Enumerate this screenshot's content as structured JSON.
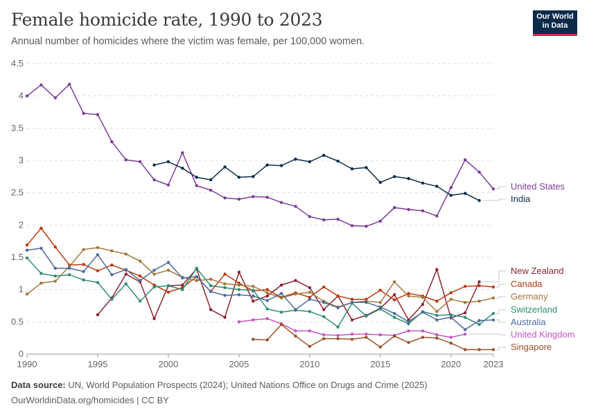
{
  "header": {
    "title": "Female homicide rate, 1990 to 2023",
    "subtitle": "Annual number of homicides where the victim was female, per 100,000 women.",
    "logo_line1": "Our World",
    "logo_line2": "in Data"
  },
  "footer": {
    "source_label": "Data source:",
    "source_text": "UN, World Population Prospects (2024); United Nations Office on Drugs and Crime (2025)",
    "link_text": "OurWorldinData.org/homicides | CC BY"
  },
  "chart_data": {
    "type": "line",
    "xlim": [
      1990,
      2023
    ],
    "ylim": [
      0,
      4.5
    ],
    "x_ticks": [
      1990,
      1995,
      2000,
      2005,
      2010,
      2015,
      2020,
      2023
    ],
    "y_ticks": [
      0,
      0.5,
      1,
      1.5,
      2,
      2.5,
      3,
      3.5,
      4,
      4.5
    ],
    "grid": "horizontal-dashed",
    "legend": "right-labels",
    "series": [
      {
        "name": "United States",
        "color": "#7a3d96",
        "points": [
          [
            1990,
            4.0
          ],
          [
            1991,
            4.17
          ],
          [
            1992,
            3.97
          ],
          [
            1993,
            4.18
          ],
          [
            1994,
            3.73
          ],
          [
            1995,
            3.71
          ],
          [
            1996,
            3.29
          ],
          [
            1997,
            3.01
          ],
          [
            1998,
            2.98
          ],
          [
            1999,
            2.7
          ],
          [
            2000,
            2.62
          ],
          [
            2001,
            3.12
          ],
          [
            2002,
            2.61
          ],
          [
            2003,
            2.54
          ],
          [
            2004,
            2.42
          ],
          [
            2005,
            2.4
          ],
          [
            2006,
            2.44
          ],
          [
            2007,
            2.43
          ],
          [
            2008,
            2.35
          ],
          [
            2009,
            2.29
          ],
          [
            2010,
            2.13
          ],
          [
            2011,
            2.08
          ],
          [
            2012,
            2.09
          ],
          [
            2013,
            1.99
          ],
          [
            2014,
            1.98
          ],
          [
            2015,
            2.06
          ],
          [
            2016,
            2.27
          ],
          [
            2017,
            2.24
          ],
          [
            2018,
            2.22
          ],
          [
            2019,
            2.14
          ],
          [
            2020,
            2.58
          ],
          [
            2021,
            3.01
          ],
          [
            2022,
            2.82
          ],
          [
            2023,
            2.56
          ]
        ]
      },
      {
        "name": "India",
        "color": "#0c2b4b",
        "points": [
          [
            1999,
            2.93
          ],
          [
            2000,
            2.98
          ],
          [
            2001,
            2.88
          ],
          [
            2002,
            2.74
          ],
          [
            2003,
            2.7
          ],
          [
            2004,
            2.9
          ],
          [
            2005,
            2.74
          ],
          [
            2006,
            2.75
          ],
          [
            2007,
            2.93
          ],
          [
            2008,
            2.92
          ],
          [
            2009,
            3.02
          ],
          [
            2010,
            2.98
          ],
          [
            2011,
            3.08
          ],
          [
            2012,
            2.99
          ],
          [
            2013,
            2.87
          ],
          [
            2014,
            2.89
          ],
          [
            2015,
            2.66
          ],
          [
            2016,
            2.75
          ],
          [
            2017,
            2.72
          ],
          [
            2018,
            2.65
          ],
          [
            2019,
            2.6
          ],
          [
            2020,
            2.46
          ],
          [
            2021,
            2.49
          ],
          [
            2022,
            2.38
          ]
        ]
      },
      {
        "name": "New Zealand",
        "color": "#8c2331",
        "points": [
          [
            1995,
            0.61
          ],
          [
            1996,
            0.87
          ],
          [
            1997,
            1.24
          ],
          [
            1998,
            1.12
          ],
          [
            1999,
            0.55
          ],
          [
            2000,
            1.06
          ],
          [
            2001,
            1.07
          ],
          [
            2002,
            1.32
          ],
          [
            2003,
            0.69
          ],
          [
            2004,
            0.57
          ],
          [
            2005,
            1.27
          ],
          [
            2006,
            0.82
          ],
          [
            2007,
            0.9
          ],
          [
            2008,
            1.07
          ],
          [
            2009,
            1.14
          ],
          [
            2010,
            1.03
          ],
          [
            2011,
            0.69
          ],
          [
            2012,
            0.9
          ],
          [
            2013,
            0.53
          ],
          [
            2014,
            0.6
          ],
          [
            2015,
            0.71
          ],
          [
            2016,
            0.92
          ],
          [
            2017,
            0.53
          ],
          [
            2018,
            0.77
          ],
          [
            2019,
            1.31
          ],
          [
            2020,
            0.56
          ],
          [
            2021,
            0.64
          ],
          [
            2022,
            1.12
          ]
        ]
      },
      {
        "name": "Canada",
        "color": "#b83a10",
        "points": [
          [
            1990,
            1.69
          ],
          [
            1991,
            1.95
          ],
          [
            1992,
            1.66
          ],
          [
            1993,
            1.38
          ],
          [
            1994,
            1.39
          ],
          [
            1995,
            1.29
          ],
          [
            1996,
            1.38
          ],
          [
            1997,
            1.3
          ],
          [
            1998,
            1.21
          ],
          [
            1999,
            1.07
          ],
          [
            2000,
            0.96
          ],
          [
            2001,
            1.03
          ],
          [
            2002,
            1.2
          ],
          [
            2003,
            0.97
          ],
          [
            2004,
            1.24
          ],
          [
            2005,
            1.1
          ],
          [
            2006,
            0.98
          ],
          [
            2007,
            1.0
          ],
          [
            2008,
            0.88
          ],
          [
            2009,
            0.95
          ],
          [
            2010,
            0.88
          ],
          [
            2011,
            1.04
          ],
          [
            2012,
            0.9
          ],
          [
            2013,
            0.85
          ],
          [
            2014,
            0.85
          ],
          [
            2015,
            0.99
          ],
          [
            2016,
            0.84
          ],
          [
            2017,
            0.94
          ],
          [
            2018,
            0.9
          ],
          [
            2019,
            0.82
          ],
          [
            2020,
            0.95
          ],
          [
            2021,
            1.05
          ],
          [
            2022,
            1.06
          ],
          [
            2023,
            1.04
          ]
        ]
      },
      {
        "name": "Germany",
        "color": "#a2763a",
        "points": [
          [
            1990,
            0.93
          ],
          [
            1991,
            1.1
          ],
          [
            1992,
            1.13
          ],
          [
            1993,
            1.36
          ],
          [
            1994,
            1.62
          ],
          [
            1995,
            1.65
          ],
          [
            1996,
            1.6
          ],
          [
            1997,
            1.55
          ],
          [
            1998,
            1.44
          ],
          [
            1999,
            1.24
          ],
          [
            2000,
            1.3
          ],
          [
            2001,
            1.19
          ],
          [
            2002,
            1.14
          ],
          [
            2003,
            1.16
          ],
          [
            2004,
            1.09
          ],
          [
            2005,
            1.07
          ],
          [
            2006,
            1.05
          ],
          [
            2007,
            0.95
          ],
          [
            2008,
            0.87
          ],
          [
            2009,
            0.93
          ],
          [
            2010,
            0.96
          ],
          [
            2011,
            0.82
          ],
          [
            2012,
            0.73
          ],
          [
            2013,
            0.8
          ],
          [
            2014,
            0.82
          ],
          [
            2015,
            0.8
          ],
          [
            2016,
            1.12
          ],
          [
            2017,
            0.9
          ],
          [
            2018,
            0.88
          ],
          [
            2019,
            0.66
          ],
          [
            2020,
            0.85
          ],
          [
            2021,
            0.8
          ],
          [
            2022,
            0.82
          ],
          [
            2023,
            0.87
          ]
        ]
      },
      {
        "name": "Switzerland",
        "color": "#2e8d6f",
        "points": [
          [
            1990,
            1.49
          ],
          [
            1991,
            1.25
          ],
          [
            1992,
            1.21
          ],
          [
            1993,
            1.23
          ],
          [
            1994,
            1.15
          ],
          [
            1995,
            1.11
          ],
          [
            1996,
            0.85
          ],
          [
            1997,
            1.09
          ],
          [
            1998,
            0.82
          ],
          [
            1999,
            1.04
          ],
          [
            2000,
            1.06
          ],
          [
            2001,
            1.0
          ],
          [
            2002,
            1.33
          ],
          [
            2003,
            1.06
          ],
          [
            2004,
            1.03
          ],
          [
            2005,
            1.0
          ],
          [
            2006,
            0.99
          ],
          [
            2007,
            0.7
          ],
          [
            2008,
            0.65
          ],
          [
            2009,
            0.68
          ],
          [
            2010,
            0.66
          ],
          [
            2011,
            0.58
          ],
          [
            2012,
            0.42
          ],
          [
            2013,
            0.79
          ],
          [
            2014,
            0.59
          ],
          [
            2015,
            0.7
          ],
          [
            2016,
            0.57
          ],
          [
            2017,
            0.47
          ],
          [
            2018,
            0.66
          ],
          [
            2019,
            0.6
          ],
          [
            2020,
            0.61
          ],
          [
            2021,
            0.57
          ],
          [
            2022,
            0.46
          ],
          [
            2023,
            0.63
          ]
        ]
      },
      {
        "name": "Australia",
        "color": "#4c6a9c",
        "points": [
          [
            1990,
            1.61
          ],
          [
            1991,
            1.64
          ],
          [
            1992,
            1.33
          ],
          [
            1993,
            1.33
          ],
          [
            1994,
            1.28
          ],
          [
            1995,
            1.54
          ],
          [
            1996,
            1.23
          ],
          [
            1997,
            1.31
          ],
          [
            1998,
            1.14
          ],
          [
            1999,
            1.3
          ],
          [
            2000,
            1.42
          ],
          [
            2001,
            1.18
          ],
          [
            2002,
            1.2
          ],
          [
            2003,
            0.97
          ],
          [
            2004,
            0.91
          ],
          [
            2005,
            0.92
          ],
          [
            2006,
            0.9
          ],
          [
            2007,
            0.83
          ],
          [
            2008,
            0.94
          ],
          [
            2009,
            0.69
          ],
          [
            2010,
            0.85
          ],
          [
            2011,
            0.8
          ],
          [
            2012,
            0.72
          ],
          [
            2013,
            0.8
          ],
          [
            2014,
            0.8
          ],
          [
            2015,
            0.73
          ],
          [
            2016,
            0.63
          ],
          [
            2017,
            0.5
          ],
          [
            2018,
            0.65
          ],
          [
            2019,
            0.53
          ],
          [
            2020,
            0.57
          ],
          [
            2021,
            0.38
          ],
          [
            2022,
            0.52
          ],
          [
            2023,
            0.53
          ]
        ]
      },
      {
        "name": "United Kingdom",
        "color": "#c554c4",
        "points": [
          [
            2005,
            0.5
          ],
          [
            2006,
            0.53
          ],
          [
            2007,
            0.55
          ],
          [
            2008,
            0.47
          ],
          [
            2009,
            0.36
          ],
          [
            2010,
            0.36
          ],
          [
            2011,
            0.3
          ],
          [
            2012,
            0.29
          ],
          [
            2013,
            0.31
          ],
          [
            2014,
            0.31
          ],
          [
            2015,
            0.3
          ],
          [
            2016,
            0.29
          ],
          [
            2017,
            0.36
          ],
          [
            2018,
            0.36
          ],
          [
            2019,
            0.3
          ],
          [
            2020,
            0.26
          ],
          [
            2021,
            0.31
          ]
        ]
      },
      {
        "name": "Singapore",
        "color": "#9a5129",
        "points": [
          [
            2006,
            0.23
          ],
          [
            2007,
            0.22
          ],
          [
            2008,
            0.46
          ],
          [
            2009,
            0.28
          ],
          [
            2010,
            0.12
          ],
          [
            2011,
            0.24
          ],
          [
            2012,
            0.24
          ],
          [
            2013,
            0.23
          ],
          [
            2014,
            0.26
          ],
          [
            2015,
            0.11
          ],
          [
            2016,
            0.28
          ],
          [
            2017,
            0.18
          ],
          [
            2018,
            0.26
          ],
          [
            2019,
            0.25
          ],
          [
            2020,
            0.17
          ],
          [
            2021,
            0.07
          ],
          [
            2022,
            0.07
          ],
          [
            2023,
            0.07
          ]
        ]
      }
    ]
  }
}
